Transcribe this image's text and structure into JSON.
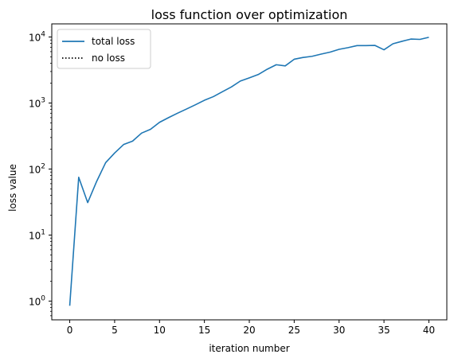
{
  "chart_data": {
    "type": "line",
    "title": "loss function over optimization",
    "xlabel": "iteration number",
    "ylabel": "loss value",
    "yscale": "log",
    "xlim": [
      -2,
      42
    ],
    "ylim": [
      0.52,
      15800
    ],
    "x_ticks": [
      0,
      5,
      10,
      15,
      20,
      25,
      30,
      35,
      40
    ],
    "y_ticks": [
      {
        "value": 1,
        "mantissa": "10",
        "exp": "0"
      },
      {
        "value": 10,
        "mantissa": "10",
        "exp": "1"
      },
      {
        "value": 100,
        "mantissa": "10",
        "exp": "2"
      },
      {
        "value": 1000,
        "mantissa": "10",
        "exp": "3"
      },
      {
        "value": 10000,
        "mantissa": "10",
        "exp": "4"
      }
    ],
    "legend_position": "top-left",
    "series": [
      {
        "name": "total loss",
        "color": "#1f77b4",
        "style": "solid",
        "x": [
          0,
          1,
          2,
          3,
          4,
          5,
          6,
          7,
          8,
          9,
          10,
          11,
          12,
          13,
          14,
          15,
          16,
          17,
          18,
          19,
          20,
          21,
          22,
          23,
          24,
          25,
          26,
          27,
          28,
          29,
          30,
          31,
          32,
          33,
          34,
          35,
          36,
          37,
          38,
          39,
          40
        ],
        "values": [
          0.85,
          75,
          31,
          65,
          125,
          175,
          235,
          265,
          350,
          400,
          510,
          600,
          700,
          810,
          940,
          1100,
          1250,
          1480,
          1750,
          2150,
          2400,
          2700,
          3250,
          3800,
          3650,
          4600,
          4900,
          5100,
          5500,
          5900,
          6500,
          6900,
          7400,
          7400,
          7450,
          6400,
          7900,
          8600,
          9300,
          9200,
          9900
        ]
      },
      {
        "name": "no loss",
        "color": "#000000",
        "style": "dotted",
        "x": [],
        "values": []
      }
    ]
  }
}
